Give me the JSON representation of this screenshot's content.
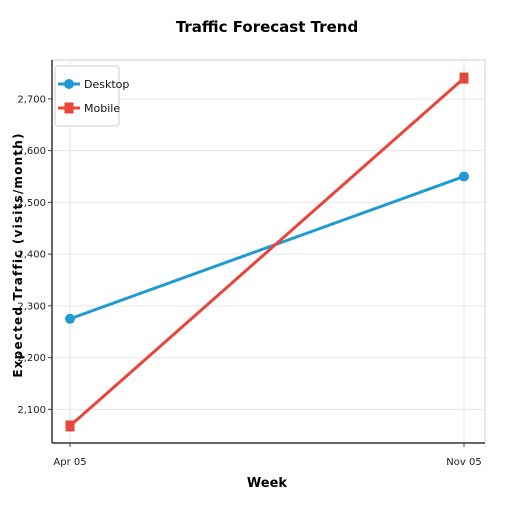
{
  "chart_data": {
    "type": "line",
    "title": "Traffic Forecast Trend",
    "xlabel": "Week",
    "ylabel": "Expected Traffic (visits/month)",
    "x": [
      "Apr 05",
      "Nov 05"
    ],
    "ylim": [
      2035,
      2775
    ],
    "yticks": [
      2100,
      2200,
      2300,
      2400,
      2500,
      2600,
      2700
    ],
    "ytick_labels": [
      "2,100",
      "2,200",
      "2,300",
      "2,400",
      "2,500",
      "2,600",
      "2,700"
    ],
    "grid": true,
    "legend": "top-left",
    "series": [
      {
        "name": "Desktop",
        "values": [
          2275,
          2550
        ],
        "color": "#1f9bd1",
        "marker": "circle"
      },
      {
        "name": "Mobile",
        "values": [
          2068,
          2740
        ],
        "color": "#e8453c",
        "marker": "square"
      }
    ]
  }
}
